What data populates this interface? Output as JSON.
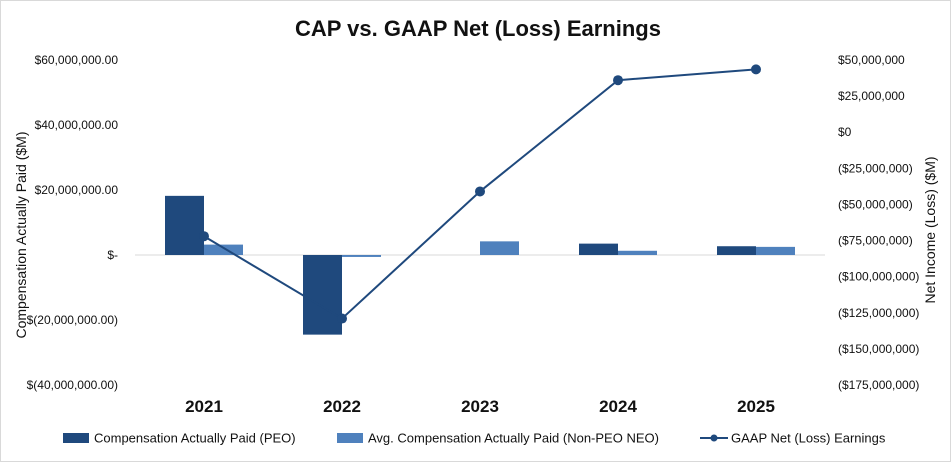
{
  "chart_data": {
    "type": "bar",
    "title": "CAP vs. GAAP Net (Loss) Earnings",
    "ylabel": "Compensation Actually Paid ($M)",
    "y2label": "Net Income (Loss) ($M)",
    "categories": [
      "2021",
      "2022",
      "2023",
      "2024",
      "2025"
    ],
    "ylim": [
      -40000000,
      60000000
    ],
    "y2lim": [
      -175000000,
      50000000
    ],
    "y_ticks": [
      {
        "value": 60000000,
        "label": "$60,000,000.00"
      },
      {
        "value": 40000000,
        "label": "$40,000,000.00"
      },
      {
        "value": 20000000,
        "label": "$20,000,000.00"
      },
      {
        "value": 0,
        "label": "$-"
      },
      {
        "value": -20000000,
        "label": "$(20,000,000.00)"
      },
      {
        "value": -40000000,
        "label": "$(40,000,000.00)"
      }
    ],
    "y2_ticks": [
      {
        "value": 50000000,
        "label": "$50,000,000"
      },
      {
        "value": 25000000,
        "label": "$25,000,000"
      },
      {
        "value": 0,
        "label": "$0"
      },
      {
        "value": -25000000,
        "label": "($25,000,000)"
      },
      {
        "value": -50000000,
        "label": "($50,000,000)"
      },
      {
        "value": -75000000,
        "label": "($75,000,000)"
      },
      {
        "value": -100000000,
        "label": "($100,000,000)"
      },
      {
        "value": -125000000,
        "label": "($125,000,000)"
      },
      {
        "value": -150000000,
        "label": "($150,000,000)"
      },
      {
        "value": -175000000,
        "label": "($175,000,000)"
      }
    ],
    "series": [
      {
        "name": "Compensation Actually Paid (PEO)",
        "type": "bar",
        "axis": "left",
        "color": "#1f497d",
        "values": [
          18200000,
          -24500000,
          0,
          3500000,
          2700000
        ]
      },
      {
        "name": "Avg. Compensation Actually Paid (Non-PEO NEO)",
        "type": "bar",
        "axis": "left",
        "color": "#4f81bd",
        "values": [
          3200000,
          -600000,
          4200000,
          1300000,
          2500000
        ]
      },
      {
        "name": "GAAP Net (Loss) Earnings",
        "type": "line",
        "axis": "right",
        "color": "#1f497d",
        "values": [
          -72000000,
          -129000000,
          -41000000,
          36000000,
          43500000
        ]
      }
    ],
    "grid": false,
    "legend": "bottom"
  }
}
